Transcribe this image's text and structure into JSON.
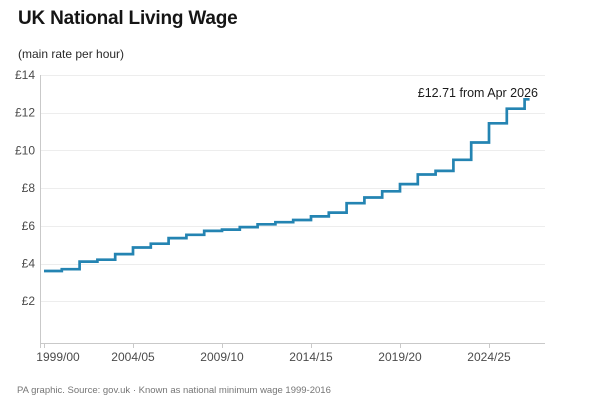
{
  "header": {
    "title": "UK National Living Wage",
    "subtitle": "(main rate per hour)"
  },
  "footer": {
    "source": "PA graphic. Source: gov.uk · Known as national minimum wage 1999-2016"
  },
  "chart_data": {
    "type": "line",
    "subtype": "step-after",
    "title": "UK National Living Wage",
    "subtitle": "(main rate per hour)",
    "x": [
      1999,
      2000,
      2001,
      2002,
      2003,
      2004,
      2005,
      2006,
      2007,
      2008,
      2009,
      2010,
      2011,
      2012,
      2013,
      2014,
      2015,
      2016,
      2017,
      2018,
      2019,
      2020,
      2021,
      2022,
      2023,
      2024,
      2025,
      2026
    ],
    "values": [
      3.6,
      3.7,
      4.1,
      4.2,
      4.5,
      4.85,
      5.05,
      5.35,
      5.52,
      5.73,
      5.8,
      5.93,
      6.08,
      6.19,
      6.31,
      6.5,
      6.7,
      7.2,
      7.5,
      7.83,
      8.21,
      8.72,
      8.91,
      9.5,
      10.42,
      11.44,
      12.21,
      12.71
    ],
    "x_tick_years": [
      1999,
      2004,
      2009,
      2014,
      2019,
      2024
    ],
    "x_tick_labels": [
      "1999/00",
      "2004/05",
      "2009/10",
      "2014/15",
      "2019/20",
      "2024/25"
    ],
    "y_ticks": [
      2,
      4,
      6,
      8,
      10,
      12,
      14
    ],
    "y_tick_labels": [
      "£2",
      "£4",
      "£6",
      "£8",
      "£10",
      "£12",
      "£14"
    ],
    "ylim": [
      -0.2,
      14
    ],
    "xlim": [
      1999,
      2027.2
    ],
    "annotation": "£12.71 from Apr 2026",
    "grid": true,
    "legend": "none",
    "line_color": "#2484b2",
    "grid_color": "#ededed",
    "axis_color": "#c9c9c9",
    "tick_label_color": "#4b4b4b",
    "annotation_color": "#1b1b1b"
  }
}
